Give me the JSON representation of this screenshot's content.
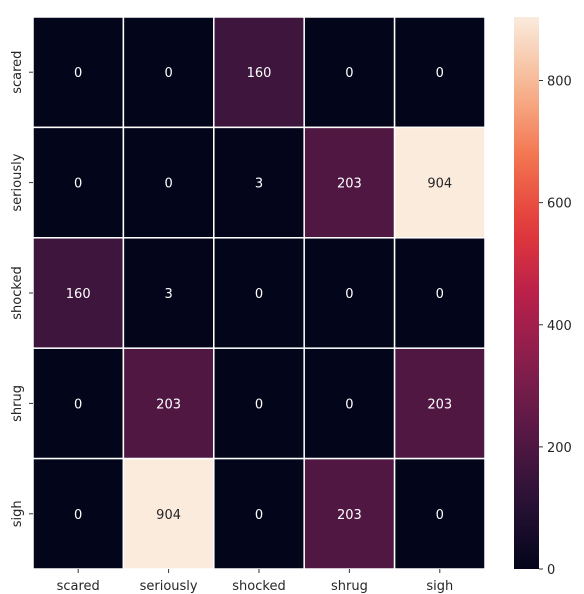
{
  "chart_data": {
    "type": "heatmap",
    "rows": [
      "scared",
      "seriously",
      "shocked",
      "shrug",
      "sigh"
    ],
    "columns": [
      "scared",
      "seriously",
      "shocked",
      "shrug",
      "sigh"
    ],
    "values": [
      [
        0,
        0,
        160,
        0,
        0
      ],
      [
        0,
        0,
        3,
        203,
        904
      ],
      [
        160,
        3,
        0,
        0,
        0
      ],
      [
        0,
        203,
        0,
        0,
        203
      ],
      [
        0,
        904,
        0,
        203,
        0
      ]
    ],
    "colorbar": {
      "min": 0,
      "max": 904,
      "ticks": [
        0,
        200,
        400,
        600,
        800
      ],
      "colormap": "rocket"
    },
    "title": "",
    "xlabel": "",
    "ylabel": "",
    "annotations": true
  }
}
